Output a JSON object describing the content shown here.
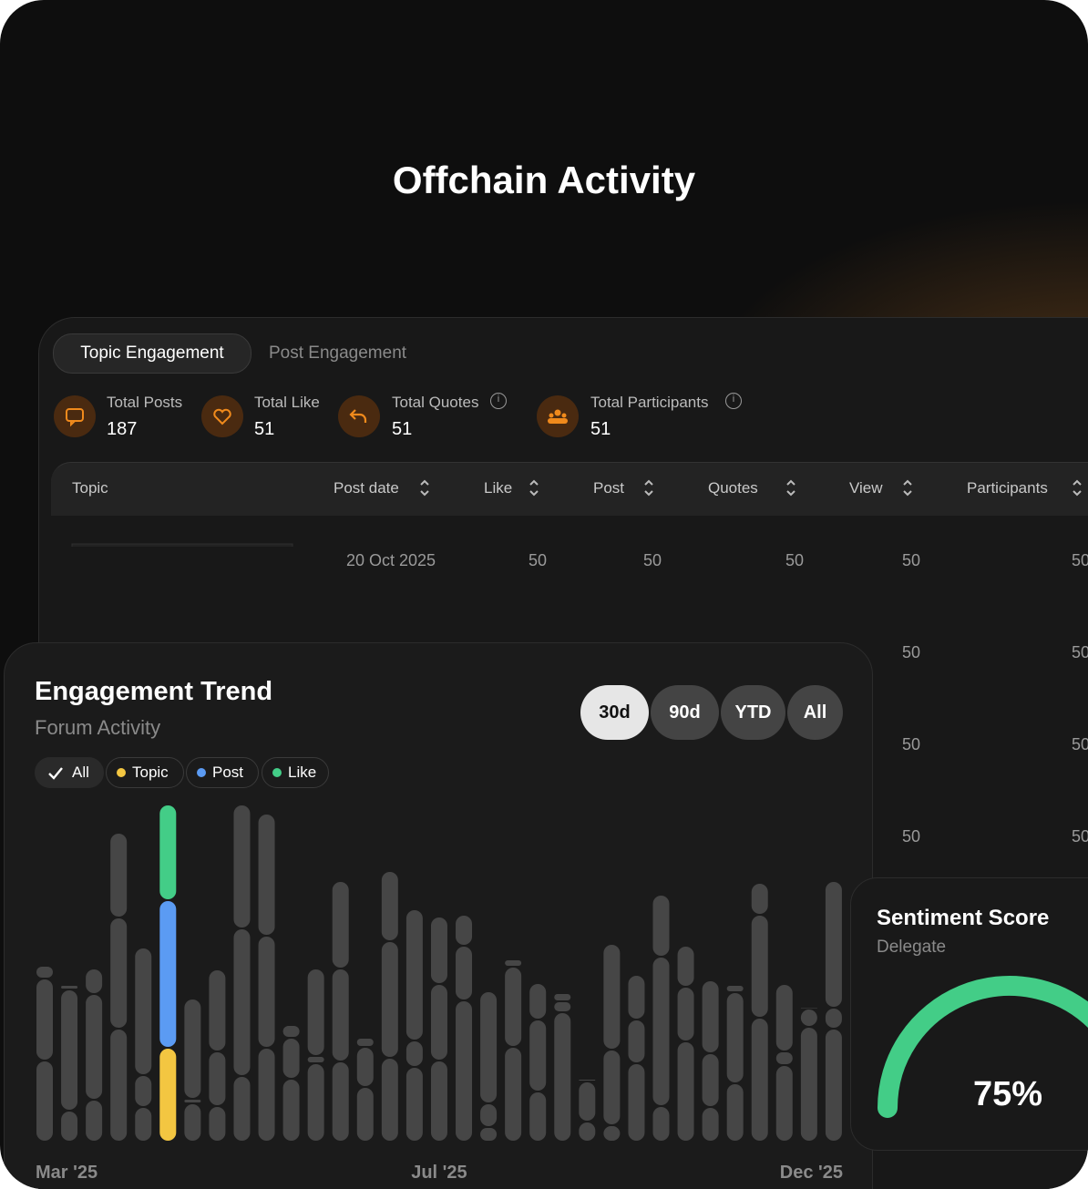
{
  "page": {
    "title": "Offchain Activity"
  },
  "tabs": [
    "Topic Engagement",
    "Post Engagement"
  ],
  "stats": [
    {
      "label": "Total Posts",
      "value": 187
    },
    {
      "label": "Total Like",
      "value": 51
    },
    {
      "label": "Total Quotes",
      "value": 51
    },
    {
      "label": "Total Participants",
      "value": 51
    }
  ],
  "table": {
    "headers": [
      "Topic",
      "Post date",
      "Like",
      "Post",
      "Quotes",
      "View",
      "Participants"
    ],
    "rows": [
      {
        "post_date": "20 Oct 2025",
        "like": 50,
        "post": 50,
        "quotes": 50,
        "view": 50,
        "participants": 50
      },
      {
        "view": 50,
        "participants": 50
      },
      {
        "view": 50,
        "participants": 50
      },
      {
        "view": 50,
        "participants": 50
      }
    ]
  },
  "trend": {
    "title": "Engagement Trend",
    "subtitle": "Forum Activity",
    "ranges": [
      "30d",
      "90d",
      "YTD",
      "All"
    ],
    "filter_all": "All",
    "chart_data": {
      "type": "bar",
      "stacked": true,
      "highlight_index": 5,
      "inactive_color": "#464646",
      "ylim": [
        0,
        372
      ],
      "categories": [
        "Mar '25",
        null,
        null,
        null,
        null,
        null,
        null,
        null,
        null,
        null,
        null,
        null,
        null,
        null,
        null,
        null,
        "Jul '25",
        null,
        null,
        null,
        null,
        null,
        null,
        null,
        null,
        null,
        null,
        null,
        null,
        null,
        null,
        null,
        "Dec '25"
      ],
      "series": [
        {
          "name": "Topic",
          "color": "#f3c641",
          "values": [
            89,
            34,
            46,
            124,
            38,
            103,
            42,
            39,
            72,
            103,
            69,
            86,
            88,
            60,
            92,
            82,
            89,
            155,
            16,
            104,
            55,
            142,
            22,
            18,
            86,
            39,
            110,
            38,
            64,
            136,
            84,
            126,
            124
          ]
        },
        {
          "name": "Post",
          "color": "#5b9bf3",
          "values": [
            90,
            133,
            116,
            122,
            35,
            162,
            5,
            60,
            162,
            123,
            45,
            8,
            102,
            44,
            128,
            29,
            84,
            60,
            26,
            88,
            79,
            12,
            44,
            83,
            48,
            164,
            60,
            59,
            100,
            113,
            15,
            20,
            23
          ]
        },
        {
          "name": "Like",
          "color": "#43cd87",
          "values": [
            14,
            5,
            28,
            93,
            140,
            105,
            110,
            90,
            136,
            134,
            14,
            96,
            96,
            10,
            77,
            144,
            74,
            34,
            123,
            8,
            40,
            9,
            3,
            116,
            49,
            68,
            45,
            80,
            8,
            35,
            74,
            2,
            139
          ]
        }
      ]
    }
  },
  "sentiment": {
    "title": "Sentiment Score",
    "subtitle": "Delegate",
    "value": 75,
    "value_label": "75%",
    "color": "#43cd87"
  }
}
